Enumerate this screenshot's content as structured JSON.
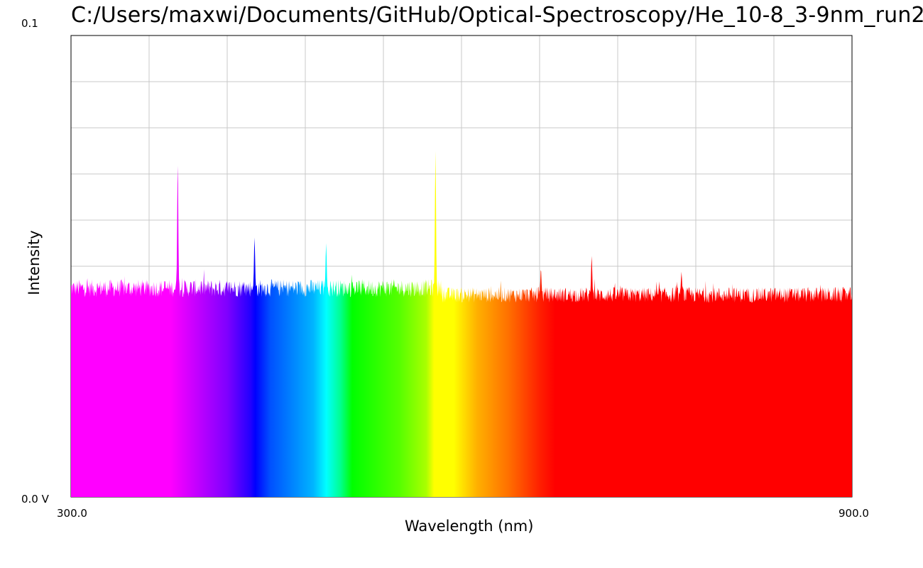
{
  "chart_data": {
    "type": "line",
    "title": "C:/Users/maxwi/Documents/GitHub/Optical-Spectroscopy/He_10-8_3-9nm_run2",
    "xlabel": "Wavelength (nm)",
    "ylabel": "Intensity",
    "x_tick_labels": [
      "300.0",
      "900.0"
    ],
    "y_tick_labels": [
      "0.0 V",
      "0.1"
    ],
    "xlim": [
      300,
      900
    ],
    "ylim": [
      0,
      0.1
    ],
    "grid": true,
    "fill_under_curve": "wavelength-rainbow",
    "noise_band": [
      {
        "x_start": 300,
        "x_end": 585,
        "y_min": 0.0433,
        "y_max": 0.0472
      },
      {
        "x_start": 585,
        "x_end": 900,
        "y_min": 0.0421,
        "y_max": 0.0455
      }
    ],
    "series": [
      {
        "peaks": [
          {
            "x": 382,
            "y": 0.0725
          },
          {
            "x": 441,
            "y": 0.0563
          },
          {
            "x": 496,
            "y": 0.055
          },
          {
            "x": 580,
            "y": 0.075
          },
          {
            "x": 661,
            "y": 0.0495
          },
          {
            "x": 700,
            "y": 0.0523
          },
          {
            "x": 769,
            "y": 0.0488
          }
        ]
      }
    ]
  }
}
